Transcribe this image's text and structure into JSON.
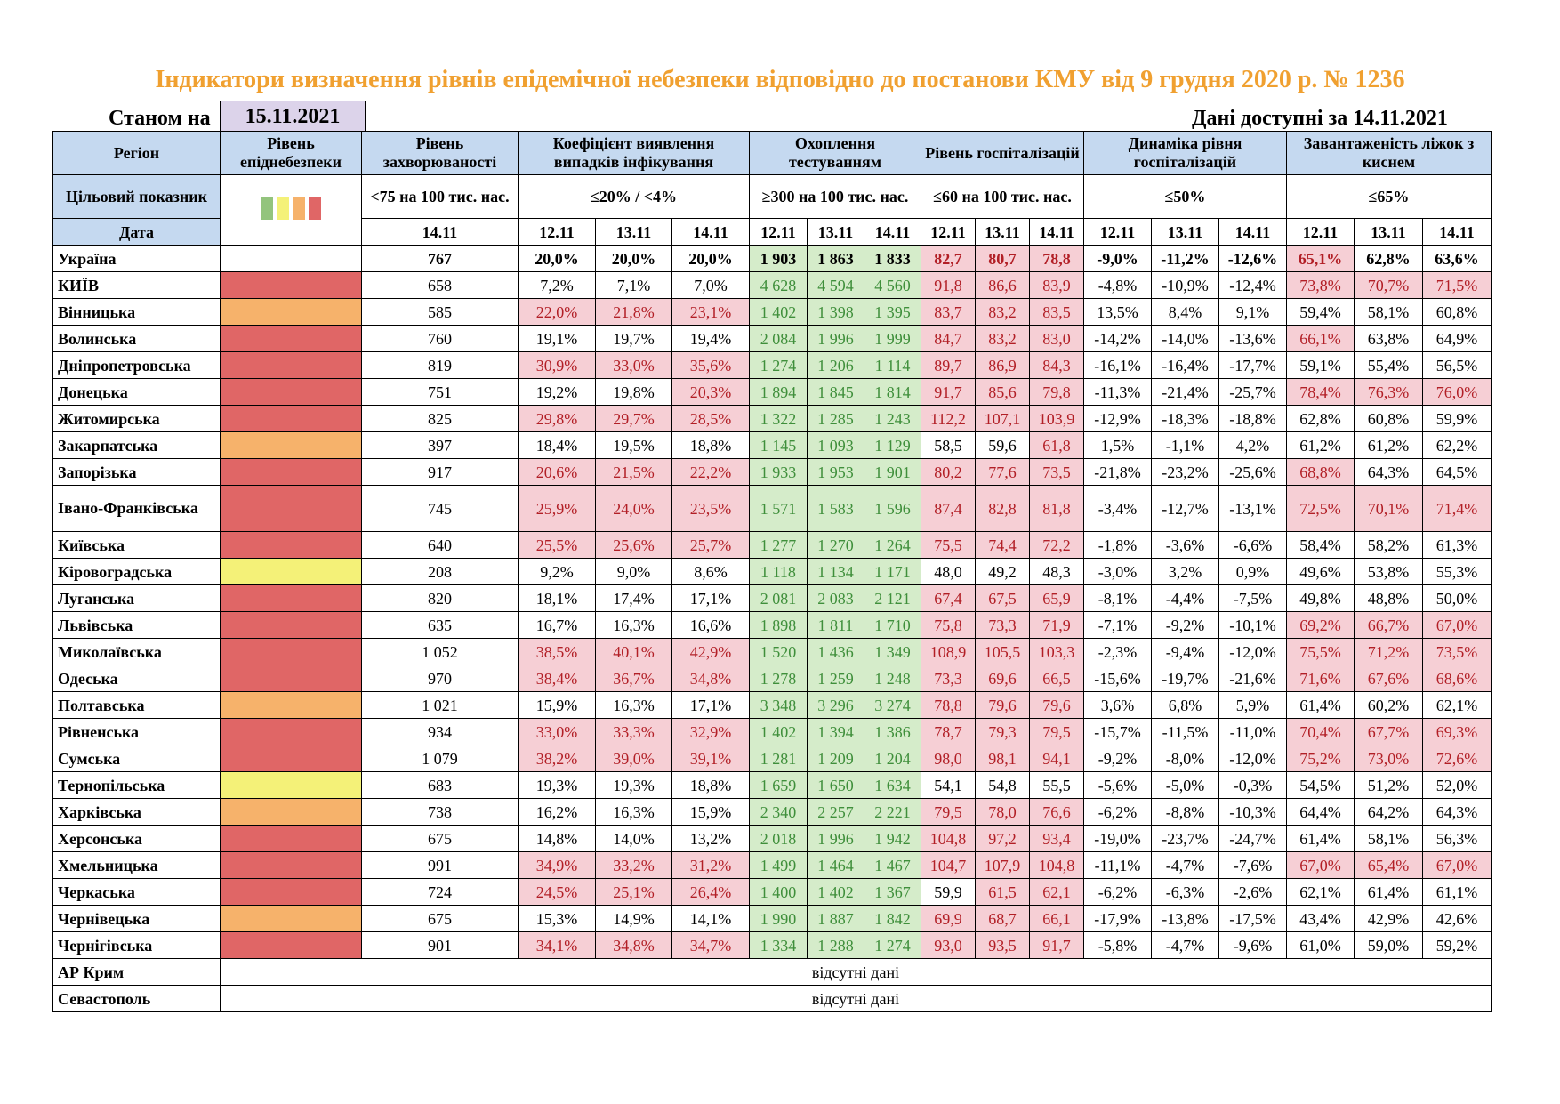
{
  "title": "Індикатори визначення рівнів епідемічної небезпеки відповідно до постанови КМУ від 9 грудня 2020 р. № 1236",
  "status": {
    "label": "Станом на",
    "date": "15.11.2021"
  },
  "available": {
    "label": "Дані доступні за",
    "date": "14.11.2021"
  },
  "headers": {
    "region": "Регіон",
    "danger": "Рівень епіднебезпеки",
    "incidence": "Рівень захворюваності",
    "detection": "Коефіцієнт виявлення випадків інфікування",
    "testing": "Охоплення тестуванням",
    "hosp": "Рівень госпіталізацій",
    "dynamics": "Динаміка рівня госпіталізацій",
    "beds": "Завантаженість ліжок з киснем"
  },
  "targets": {
    "label": "Цільовий показник",
    "incidence": "<75 на 100 тис. нас.",
    "detection": "≤20% / <4%",
    "testing": "≥300 на 100 тис. нас.",
    "hosp": "≤60 на 100 тис. нас.",
    "dynamics": "≤50%",
    "beds": "≤65%"
  },
  "legend_colors": [
    "#93c47d",
    "#f4f178",
    "#f6b26b",
    "#e06666"
  ],
  "level_colors": {
    "red": "#e06666",
    "orange": "#f6b26b",
    "yellow": "#f4f178",
    "green": "#93c47d"
  },
  "dates": {
    "label": "Дата",
    "incidence": "14.11",
    "triple": [
      "12.11",
      "13.11",
      "14.11"
    ]
  },
  "rows": [
    {
      "region": "Україна",
      "level": "",
      "incidence": "767",
      "detection": [
        "20,0%",
        "20,0%",
        "20,0%"
      ],
      "testing": [
        "1 903",
        "1 863",
        "1 833"
      ],
      "hosp": [
        "82,7",
        "80,7",
        "78,8"
      ],
      "dynamics": [
        "-9,0%",
        "-11,2%",
        "-12,6%"
      ],
      "beds": [
        "65,1%",
        "62,8%",
        "63,6%"
      ]
    },
    {
      "region": "КИЇВ",
      "level": "red",
      "incidence": "658",
      "detection": [
        "7,2%",
        "7,1%",
        "7,0%"
      ],
      "testing": [
        "4 628",
        "4 594",
        "4 560"
      ],
      "hosp": [
        "91,8",
        "86,6",
        "83,9"
      ],
      "dynamics": [
        "-4,8%",
        "-10,9%",
        "-12,4%"
      ],
      "beds": [
        "73,8%",
        "70,7%",
        "71,5%"
      ]
    },
    {
      "region": "Вінницька",
      "level": "orange",
      "incidence": "585",
      "detection": [
        "22,0%",
        "21,8%",
        "23,1%"
      ],
      "testing": [
        "1 402",
        "1 398",
        "1 395"
      ],
      "hosp": [
        "83,7",
        "83,2",
        "83,5"
      ],
      "dynamics": [
        "13,5%",
        "8,4%",
        "9,1%"
      ],
      "beds": [
        "59,4%",
        "58,1%",
        "60,8%"
      ]
    },
    {
      "region": "Волинська",
      "level": "red",
      "incidence": "760",
      "detection": [
        "19,1%",
        "19,7%",
        "19,4%"
      ],
      "testing": [
        "2 084",
        "1 996",
        "1 999"
      ],
      "hosp": [
        "84,7",
        "83,2",
        "83,0"
      ],
      "dynamics": [
        "-14,2%",
        "-14,0%",
        "-13,6%"
      ],
      "beds": [
        "66,1%",
        "63,8%",
        "64,9%"
      ]
    },
    {
      "region": "Дніпропетровська",
      "level": "red",
      "incidence": "819",
      "detection": [
        "30,9%",
        "33,0%",
        "35,6%"
      ],
      "testing": [
        "1 274",
        "1 206",
        "1 114"
      ],
      "hosp": [
        "89,7",
        "86,9",
        "84,3"
      ],
      "dynamics": [
        "-16,1%",
        "-16,4%",
        "-17,7%"
      ],
      "beds": [
        "59,1%",
        "55,4%",
        "56,5%"
      ]
    },
    {
      "region": "Донецька",
      "level": "red",
      "incidence": "751",
      "detection": [
        "19,2%",
        "19,8%",
        "20,3%"
      ],
      "testing": [
        "1 894",
        "1 845",
        "1 814"
      ],
      "hosp": [
        "91,7",
        "85,6",
        "79,8"
      ],
      "dynamics": [
        "-11,3%",
        "-21,4%",
        "-25,7%"
      ],
      "beds": [
        "78,4%",
        "76,3%",
        "76,0%"
      ]
    },
    {
      "region": "Житомирська",
      "level": "red",
      "incidence": "825",
      "detection": [
        "29,8%",
        "29,7%",
        "28,5%"
      ],
      "testing": [
        "1 322",
        "1 285",
        "1 243"
      ],
      "hosp": [
        "112,2",
        "107,1",
        "103,9"
      ],
      "dynamics": [
        "-12,9%",
        "-18,3%",
        "-18,8%"
      ],
      "beds": [
        "62,8%",
        "60,8%",
        "59,9%"
      ]
    },
    {
      "region": "Закарпатська",
      "level": "orange",
      "incidence": "397",
      "detection": [
        "18,4%",
        "19,5%",
        "18,8%"
      ],
      "testing": [
        "1 145",
        "1 093",
        "1 129"
      ],
      "hosp": [
        "58,5",
        "59,6",
        "61,8"
      ],
      "dynamics": [
        "1,5%",
        "-1,1%",
        "4,2%"
      ],
      "beds": [
        "61,2%",
        "61,2%",
        "62,2%"
      ]
    },
    {
      "region": "Запорізька",
      "level": "red",
      "incidence": "917",
      "detection": [
        "20,6%",
        "21,5%",
        "22,2%"
      ],
      "testing": [
        "1 933",
        "1 953",
        "1 901"
      ],
      "hosp": [
        "80,2",
        "77,6",
        "73,5"
      ],
      "dynamics": [
        "-21,8%",
        "-23,2%",
        "-25,6%"
      ],
      "beds": [
        "68,8%",
        "64,3%",
        "64,5%"
      ]
    },
    {
      "region": "Івано-Франківська",
      "level": "red",
      "incidence": "745",
      "detection": [
        "25,9%",
        "24,0%",
        "23,5%"
      ],
      "testing": [
        "1 571",
        "1 583",
        "1 596"
      ],
      "hosp": [
        "87,4",
        "82,8",
        "81,8"
      ],
      "dynamics": [
        "-3,4%",
        "-12,7%",
        "-13,1%"
      ],
      "beds": [
        "72,5%",
        "70,1%",
        "71,4%"
      ]
    },
    {
      "region": "Київська",
      "level": "red",
      "incidence": "640",
      "detection": [
        "25,5%",
        "25,6%",
        "25,7%"
      ],
      "testing": [
        "1 277",
        "1 270",
        "1 264"
      ],
      "hosp": [
        "75,5",
        "74,4",
        "72,2"
      ],
      "dynamics": [
        "-1,8%",
        "-3,6%",
        "-6,6%"
      ],
      "beds": [
        "58,4%",
        "58,2%",
        "61,3%"
      ]
    },
    {
      "region": "Кіровоградська",
      "level": "yellow",
      "incidence": "208",
      "detection": [
        "9,2%",
        "9,0%",
        "8,6%"
      ],
      "testing": [
        "1 118",
        "1 134",
        "1 171"
      ],
      "hosp": [
        "48,0",
        "49,2",
        "48,3"
      ],
      "dynamics": [
        "-3,0%",
        "3,2%",
        "0,9%"
      ],
      "beds": [
        "49,6%",
        "53,8%",
        "55,3%"
      ]
    },
    {
      "region": "Луганська",
      "level": "red",
      "incidence": "820",
      "detection": [
        "18,1%",
        "17,4%",
        "17,1%"
      ],
      "testing": [
        "2 081",
        "2 083",
        "2 121"
      ],
      "hosp": [
        "67,4",
        "67,5",
        "65,9"
      ],
      "dynamics": [
        "-8,1%",
        "-4,4%",
        "-7,5%"
      ],
      "beds": [
        "49,8%",
        "48,8%",
        "50,0%"
      ]
    },
    {
      "region": "Львівська",
      "level": "red",
      "incidence": "635",
      "detection": [
        "16,7%",
        "16,3%",
        "16,6%"
      ],
      "testing": [
        "1 898",
        "1 811",
        "1 710"
      ],
      "hosp": [
        "75,8",
        "73,3",
        "71,9"
      ],
      "dynamics": [
        "-7,1%",
        "-9,2%",
        "-10,1%"
      ],
      "beds": [
        "69,2%",
        "66,7%",
        "67,0%"
      ]
    },
    {
      "region": "Миколаївська",
      "level": "red",
      "incidence": "1 052",
      "detection": [
        "38,5%",
        "40,1%",
        "42,9%"
      ],
      "testing": [
        "1 520",
        "1 436",
        "1 349"
      ],
      "hosp": [
        "108,9",
        "105,5",
        "103,3"
      ],
      "dynamics": [
        "-2,3%",
        "-9,4%",
        "-12,0%"
      ],
      "beds": [
        "75,5%",
        "71,2%",
        "73,5%"
      ]
    },
    {
      "region": "Одеська",
      "level": "red",
      "incidence": "970",
      "detection": [
        "38,4%",
        "36,7%",
        "34,8%"
      ],
      "testing": [
        "1 278",
        "1 259",
        "1 248"
      ],
      "hosp": [
        "73,3",
        "69,6",
        "66,5"
      ],
      "dynamics": [
        "-15,6%",
        "-19,7%",
        "-21,6%"
      ],
      "beds": [
        "71,6%",
        "67,6%",
        "68,6%"
      ]
    },
    {
      "region": "Полтавська",
      "level": "orange",
      "incidence": "1 021",
      "detection": [
        "15,9%",
        "16,3%",
        "17,1%"
      ],
      "testing": [
        "3 348",
        "3 296",
        "3 274"
      ],
      "hosp": [
        "78,8",
        "79,6",
        "79,6"
      ],
      "dynamics": [
        "3,6%",
        "6,8%",
        "5,9%"
      ],
      "beds": [
        "61,4%",
        "60,2%",
        "62,1%"
      ]
    },
    {
      "region": "Рівненська",
      "level": "red",
      "incidence": "934",
      "detection": [
        "33,0%",
        "33,3%",
        "32,9%"
      ],
      "testing": [
        "1 402",
        "1 394",
        "1 386"
      ],
      "hosp": [
        "78,7",
        "79,3",
        "79,5"
      ],
      "dynamics": [
        "-15,7%",
        "-11,5%",
        "-11,0%"
      ],
      "beds": [
        "70,4%",
        "67,7%",
        "69,3%"
      ]
    },
    {
      "region": "Сумська",
      "level": "red",
      "incidence": "1 079",
      "detection": [
        "38,2%",
        "39,0%",
        "39,1%"
      ],
      "testing": [
        "1 281",
        "1 209",
        "1 204"
      ],
      "hosp": [
        "98,0",
        "98,1",
        "94,1"
      ],
      "dynamics": [
        "-9,2%",
        "-8,0%",
        "-12,0%"
      ],
      "beds": [
        "75,2%",
        "73,0%",
        "72,6%"
      ]
    },
    {
      "region": "Тернопільська",
      "level": "yellow",
      "incidence": "683",
      "detection": [
        "19,3%",
        "19,3%",
        "18,8%"
      ],
      "testing": [
        "1 659",
        "1 650",
        "1 634"
      ],
      "hosp": [
        "54,1",
        "54,8",
        "55,5"
      ],
      "dynamics": [
        "-5,6%",
        "-5,0%",
        "-0,3%"
      ],
      "beds": [
        "54,5%",
        "51,2%",
        "52,0%"
      ]
    },
    {
      "region": "Харківська",
      "level": "orange",
      "incidence": "738",
      "detection": [
        "16,2%",
        "16,3%",
        "15,9%"
      ],
      "testing": [
        "2 340",
        "2 257",
        "2 221"
      ],
      "hosp": [
        "79,5",
        "78,0",
        "76,6"
      ],
      "dynamics": [
        "-6,2%",
        "-8,8%",
        "-10,3%"
      ],
      "beds": [
        "64,4%",
        "64,2%",
        "64,3%"
      ]
    },
    {
      "region": "Херсонська",
      "level": "red",
      "incidence": "675",
      "detection": [
        "14,8%",
        "14,0%",
        "13,2%"
      ],
      "testing": [
        "2 018",
        "1 996",
        "1 942"
      ],
      "hosp": [
        "104,8",
        "97,2",
        "93,4"
      ],
      "dynamics": [
        "-19,0%",
        "-23,7%",
        "-24,7%"
      ],
      "beds": [
        "61,4%",
        "58,1%",
        "56,3%"
      ]
    },
    {
      "region": "Хмельницька",
      "level": "red",
      "incidence": "991",
      "detection": [
        "34,9%",
        "33,2%",
        "31,2%"
      ],
      "testing": [
        "1 499",
        "1 464",
        "1 467"
      ],
      "hosp": [
        "104,7",
        "107,9",
        "104,8"
      ],
      "dynamics": [
        "-11,1%",
        "-4,7%",
        "-7,6%"
      ],
      "beds": [
        "67,0%",
        "65,4%",
        "67,0%"
      ]
    },
    {
      "region": "Черкаська",
      "level": "red",
      "incidence": "724",
      "detection": [
        "24,5%",
        "25,1%",
        "26,4%"
      ],
      "testing": [
        "1 400",
        "1 402",
        "1 367"
      ],
      "hosp": [
        "59,9",
        "61,5",
        "62,1"
      ],
      "dynamics": [
        "-6,2%",
        "-6,3%",
        "-2,6%"
      ],
      "beds": [
        "62,1%",
        "61,4%",
        "61,1%"
      ]
    },
    {
      "region": "Чернівецька",
      "level": "orange",
      "incidence": "675",
      "detection": [
        "15,3%",
        "14,9%",
        "14,1%"
      ],
      "testing": [
        "1 990",
        "1 887",
        "1 842"
      ],
      "hosp": [
        "69,9",
        "68,7",
        "66,1"
      ],
      "dynamics": [
        "-17,9%",
        "-13,8%",
        "-17,5%"
      ],
      "beds": [
        "43,4%",
        "42,9%",
        "42,6%"
      ]
    },
    {
      "region": "Чернігівська",
      "level": "red",
      "incidence": "901",
      "detection": [
        "34,1%",
        "34,8%",
        "34,7%"
      ],
      "testing": [
        "1 334",
        "1 288",
        "1 274"
      ],
      "hosp": [
        "93,0",
        "93,5",
        "91,7"
      ],
      "dynamics": [
        "-5,8%",
        "-4,7%",
        "-9,6%"
      ],
      "beds": [
        "61,0%",
        "59,0%",
        "59,2%"
      ]
    }
  ],
  "no_data_rows": [
    {
      "region": "АР Крим",
      "text": "відсутні дані"
    },
    {
      "region": "Севастополь",
      "text": "відсутні дані"
    }
  ]
}
